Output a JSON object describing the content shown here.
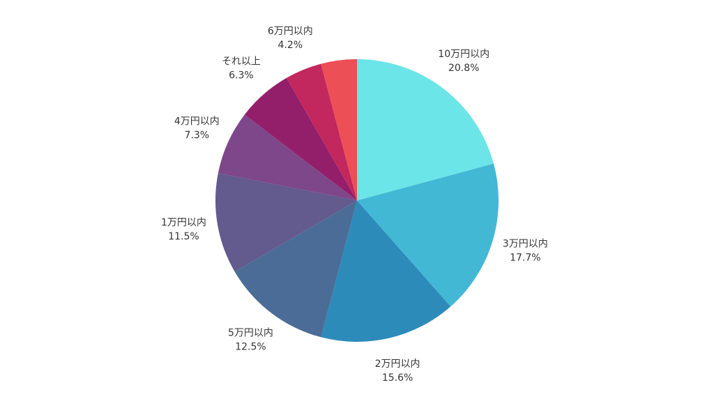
{
  "chart_data": {
    "type": "pie",
    "categories": [
      "10万円以内",
      "3万円以内",
      "2万円以内",
      "5万円以内",
      "1万円以内",
      "4万円以内",
      "それ以上",
      "6万円以内",
      null
    ],
    "values": [
      20.8,
      17.7,
      15.6,
      12.5,
      11.5,
      7.3,
      6.3,
      4.2,
      4.1
    ],
    "value_labels": [
      "20.8%",
      "17.7%",
      "15.6%",
      "12.5%",
      "11.5%",
      "7.3%",
      "6.3%",
      "4.2%",
      null
    ],
    "colors": [
      "#6ce5e8",
      "#42b8d5",
      "#2d8bba",
      "#4b6c96",
      "#635a8e",
      "#7e4789",
      "#931f6b",
      "#c2275e",
      "#ec4f56"
    ]
  }
}
